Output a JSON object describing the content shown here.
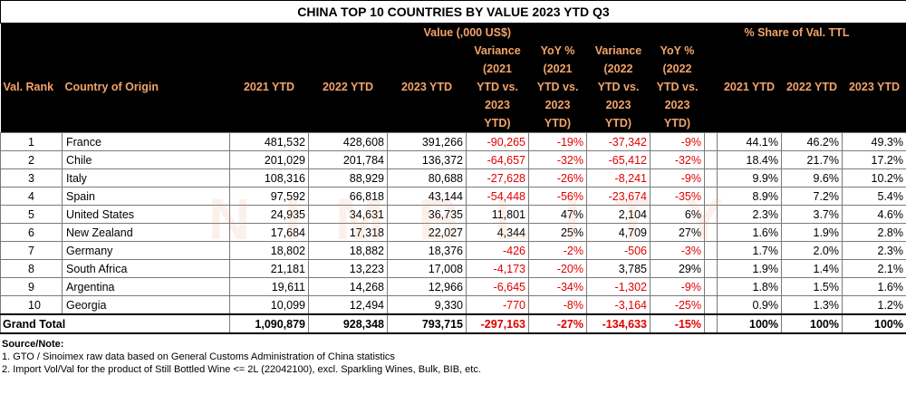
{
  "title": "CHINA TOP 10 COUNTRIES BY VALUE 2023 YTD Q3",
  "header": {
    "value_group": "Value (,000 US$)",
    "share_group": "% Share of Val.  TTL",
    "rank": "Val. Rank",
    "country": "Country of Origin",
    "y2021": "2021 YTD",
    "y2022": "2022 YTD",
    "y2023": "2023 YTD",
    "var1": [
      "Variance",
      "(2021",
      "YTD vs.",
      "2023",
      "YTD)"
    ],
    "yoy1": [
      "YoY %",
      "(2021",
      "YTD vs.",
      "2023",
      "YTD)"
    ],
    "var2": [
      "Variance",
      "(2022",
      "YTD vs.",
      "2023",
      "YTD)"
    ],
    "yoy2": [
      "YoY %",
      "(2022",
      "YTD vs.",
      "2023",
      "YTD)"
    ],
    "s2021": "2021 YTD",
    "s2022": "2022 YTD",
    "s2023": "2023 YTD"
  },
  "rows": [
    {
      "rank": "1",
      "country": "France",
      "v2021": "481,532",
      "v2022": "428,608",
      "v2023": "391,266",
      "var1": "-90,265",
      "yoy1": "-19%",
      "var2": "-37,342",
      "yoy2": "-9%",
      "s2021": "44.1%",
      "s2022": "46.2%",
      "s2023": "49.3%"
    },
    {
      "rank": "2",
      "country": "Chile",
      "v2021": "201,029",
      "v2022": "201,784",
      "v2023": "136,372",
      "var1": "-64,657",
      "yoy1": "-32%",
      "var2": "-65,412",
      "yoy2": "-32%",
      "s2021": "18.4%",
      "s2022": "21.7%",
      "s2023": "17.2%"
    },
    {
      "rank": "3",
      "country": "Italy",
      "v2021": "108,316",
      "v2022": "88,929",
      "v2023": "80,688",
      "var1": "-27,628",
      "yoy1": "-26%",
      "var2": "-8,241",
      "yoy2": "-9%",
      "s2021": "9.9%",
      "s2022": "9.6%",
      "s2023": "10.2%"
    },
    {
      "rank": "4",
      "country": "Spain",
      "v2021": "97,592",
      "v2022": "66,818",
      "v2023": "43,144",
      "var1": "-54,448",
      "yoy1": "-56%",
      "var2": "-23,674",
      "yoy2": "-35%",
      "s2021": "8.9%",
      "s2022": "7.2%",
      "s2023": "5.4%"
    },
    {
      "rank": "5",
      "country": "United States",
      "v2021": "24,935",
      "v2022": "34,631",
      "v2023": "36,735",
      "var1": "11,801",
      "yoy1": "47%",
      "var2": "2,104",
      "yoy2": "6%",
      "s2021": "2.3%",
      "s2022": "3.7%",
      "s2023": "4.6%"
    },
    {
      "rank": "6",
      "country": "New Zealand",
      "v2021": "17,684",
      "v2022": "17,318",
      "v2023": "22,027",
      "var1": "4,344",
      "yoy1": "25%",
      "var2": "4,709",
      "yoy2": "27%",
      "s2021": "1.6%",
      "s2022": "1.9%",
      "s2023": "2.8%"
    },
    {
      "rank": "7",
      "country": "Germany",
      "v2021": "18,802",
      "v2022": "18,882",
      "v2023": "18,376",
      "var1": "-426",
      "yoy1": "-2%",
      "var2": "-506",
      "yoy2": "-3%",
      "s2021": "1.7%",
      "s2022": "2.0%",
      "s2023": "2.3%"
    },
    {
      "rank": "8",
      "country": "South Africa",
      "v2021": "21,181",
      "v2022": "13,223",
      "v2023": "17,008",
      "var1": "-4,173",
      "yoy1": "-20%",
      "var2": "3,785",
      "yoy2": "29%",
      "s2021": "1.9%",
      "s2022": "1.4%",
      "s2023": "2.1%"
    },
    {
      "rank": "9",
      "country": "Argentina",
      "v2021": "19,611",
      "v2022": "14,268",
      "v2023": "12,966",
      "var1": "-6,645",
      "yoy1": "-34%",
      "var2": "-1,302",
      "yoy2": "-9%",
      "s2021": "1.8%",
      "s2022": "1.5%",
      "s2023": "1.6%"
    },
    {
      "rank": "10",
      "country": "Georgia",
      "v2021": "10,099",
      "v2022": "12,494",
      "v2023": "9,330",
      "var1": "-770",
      "yoy1": "-8%",
      "var2": "-3,164",
      "yoy2": "-25%",
      "s2021": "0.9%",
      "s2022": "1.3%",
      "s2023": "1.2%"
    }
  ],
  "total": {
    "label": "Grand Total",
    "v2021": "1,090,879",
    "v2022": "928,348",
    "v2023": "793,715",
    "var1": "-297,163",
    "yoy1": "-27%",
    "var2": "-134,633",
    "yoy2": "-15%",
    "s2021": "100%",
    "s2022": "100%",
    "s2023": "100%"
  },
  "notes": {
    "heading": "Source/Note:",
    "lines": [
      "1. GTO / Sinoimex raw data based on General Customs Administration of China statistics",
      "2. Import Vol/Val for the product of Still Bottled Wine <= 2L (22042100), excl. Sparkling Wines, Bulk, BIB, etc."
    ]
  },
  "watermark": "NIMBLITY",
  "colors": {
    "header_bg": "#000000",
    "header_text": "#f4a36a",
    "negative": "#e00000"
  }
}
